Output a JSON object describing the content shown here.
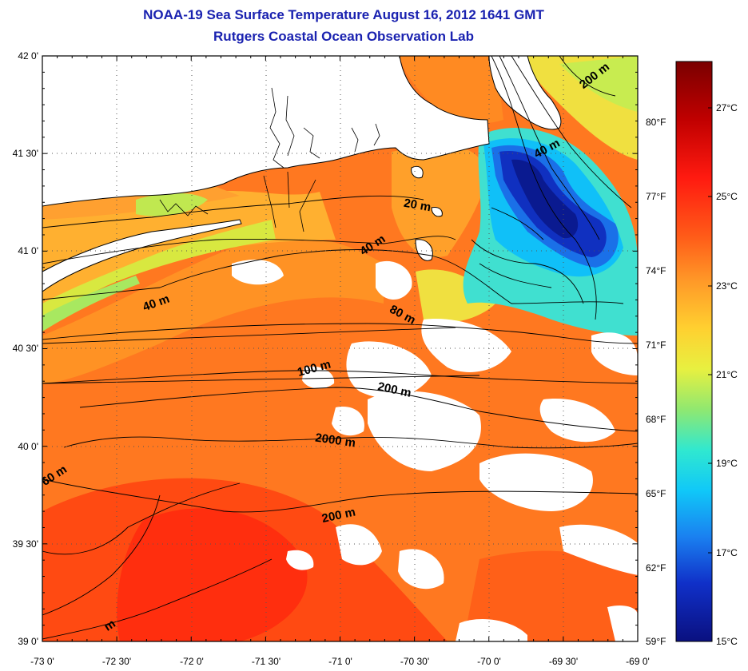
{
  "header": {
    "title": "NOAA-19 Sea Surface Temperature August 16, 2012 1641 GMT",
    "subtitle": "Rutgers Coastal Ocean Observation Lab"
  },
  "map": {
    "lat_labels": [
      "42 0'",
      "41 30'",
      "41 0'",
      "40 30'",
      "40 0'",
      "39 30'",
      "39 0'"
    ],
    "lon_labels": [
      "-73 0'",
      "-72 30'",
      "-72 0'",
      "-71 30'",
      "-71 0'",
      "-70 30'",
      "-70 0'",
      "-69 30'",
      "-69 0'"
    ],
    "fahrenheit_labels": [
      "80°F",
      "77°F",
      "74°F",
      "71°F",
      "68°F",
      "65°F",
      "62°F",
      "59°F"
    ],
    "grid": "dotted",
    "no_data_color": "#ffffff",
    "land_color": "#ffffff",
    "contour_labels": [
      "200 m",
      "40 m",
      "20 m",
      "40 m",
      "40 m",
      "60 m",
      "80 m",
      "100 m",
      "200 m",
      "2000 m",
      "200 m",
      "m"
    ]
  },
  "colorbar": {
    "labels": [
      "27°C",
      "25°C",
      "23°C",
      "21°C",
      "19°C",
      "17°C",
      "15°C"
    ],
    "min": 15,
    "max": 28.5,
    "colors": [
      "#7a0000",
      "#d81010",
      "#ff3a10",
      "#ff7a20",
      "#ffb030",
      "#f0e030",
      "#a8e860",
      "#40e8c0",
      "#10c8f0",
      "#2080f0",
      "#1030c0",
      "#0a1a90"
    ]
  }
}
